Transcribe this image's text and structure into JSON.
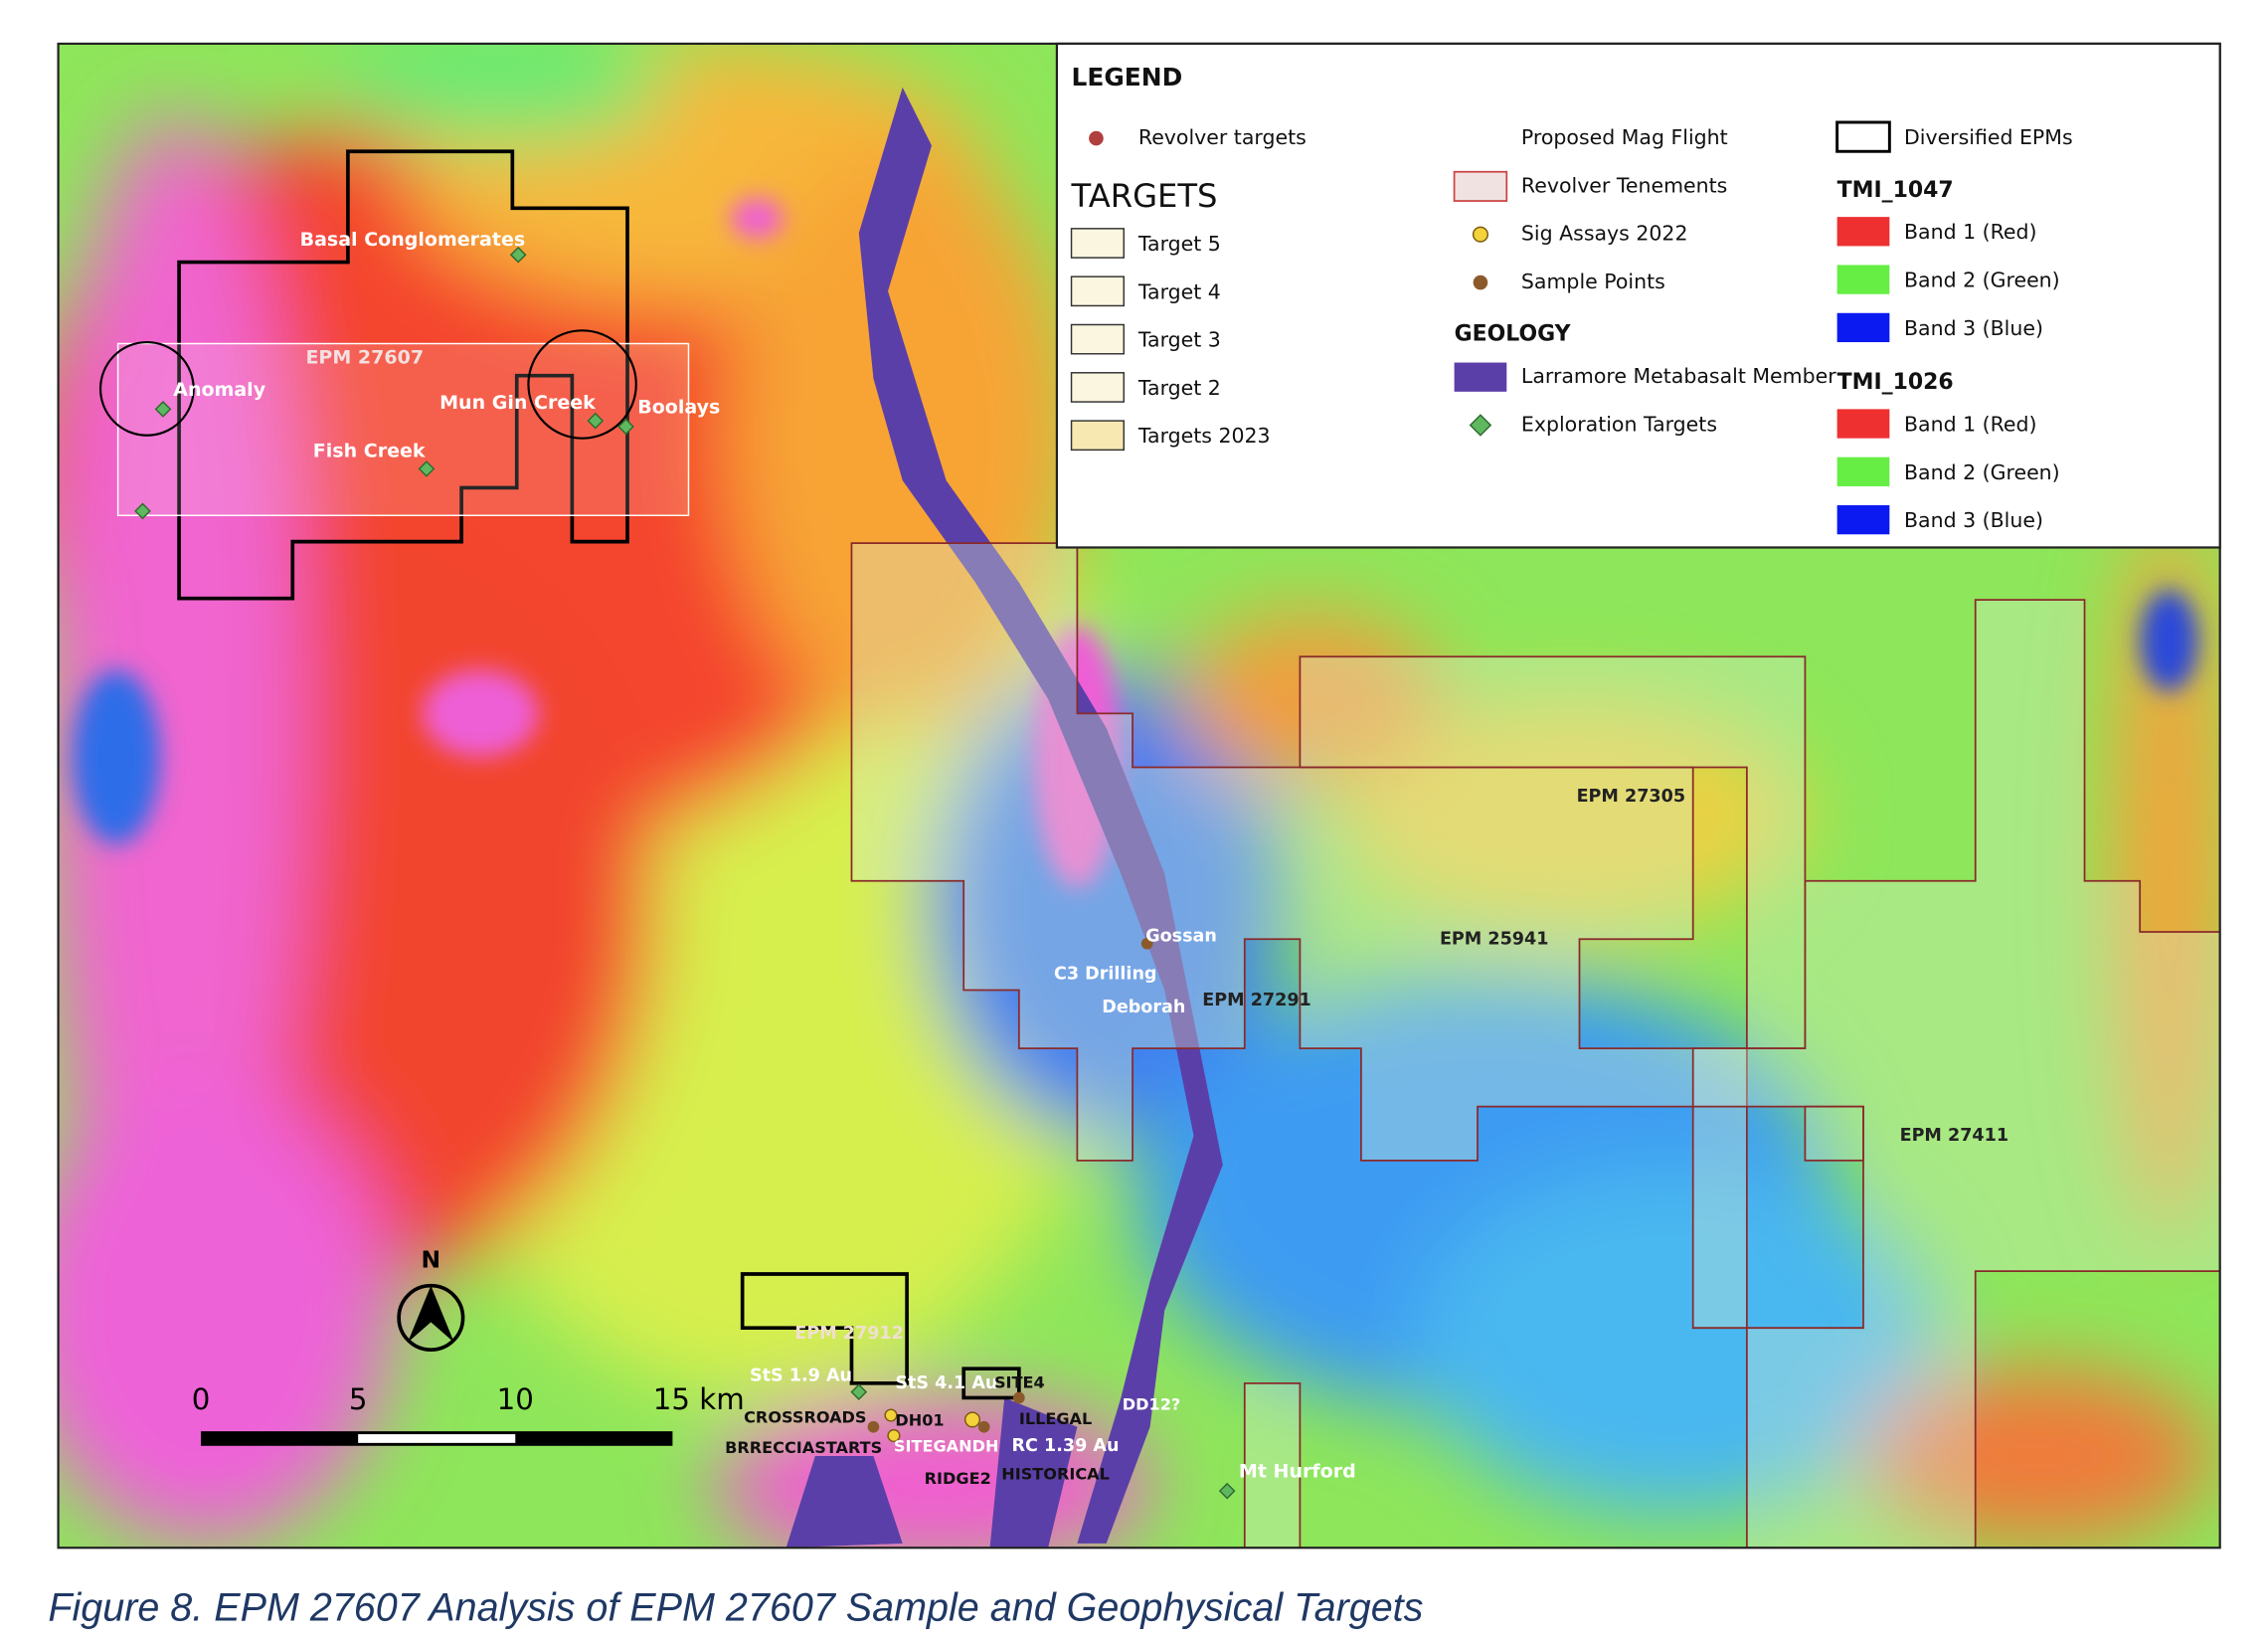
{
  "legend": {
    "title": "LEGEND",
    "revolver_targets": "Revolver targets",
    "targets_heading": "TARGETS",
    "targets": [
      "Target 5",
      "Target 4",
      "Target 3",
      "Target 2",
      "Targets 2023"
    ],
    "col2": [
      "Proposed Mag Flight",
      "Revolver Tenements",
      "Sig Assays 2022",
      "Sample Points"
    ],
    "geology_heading": "GEOLOGY",
    "geology": [
      "Larramore Metabasalt Member",
      "Exploration Targets"
    ],
    "diversified": "Diversified EPMs",
    "tmi": [
      {
        "name": "TMI_1047",
        "bands": [
          "Band 1 (Red)",
          "Band 2 (Green)",
          "Band 3 (Blue)"
        ]
      },
      {
        "name": "TMI_1026",
        "bands": [
          "Band 1 (Red)",
          "Band 2 (Green)",
          "Band 3 (Blue)"
        ]
      }
    ]
  },
  "map_labels": [
    "Basal Conglomerates",
    "EPM 27607",
    "Anomaly",
    "Mun Gin Creek",
    "Boolays",
    "Fish Creek",
    "EPM 27305",
    "EPM 25941",
    "Gossan",
    "C3 Drilling",
    "Deborah",
    "EPM 27291",
    "EPM 27411",
    "EPM 27912",
    "StS 1.9 Au",
    "StS 4.1 Au",
    "SITE4",
    "CROSSROADS",
    "DH01",
    "ILLEGAL",
    "DD12?",
    "BRRECCIASTARTS",
    "SITEGANDH",
    "RC 1.39 Au",
    "RIDGE2",
    "HISTORICAL",
    "Mt Hurford"
  ],
  "scale_bar": [
    "0",
    "5",
    "10",
    "15 km"
  ],
  "north": "N",
  "caption": "Figure 8. EPM 27607 Analysis of EPM 27607 Sample and Geophysical Targets"
}
